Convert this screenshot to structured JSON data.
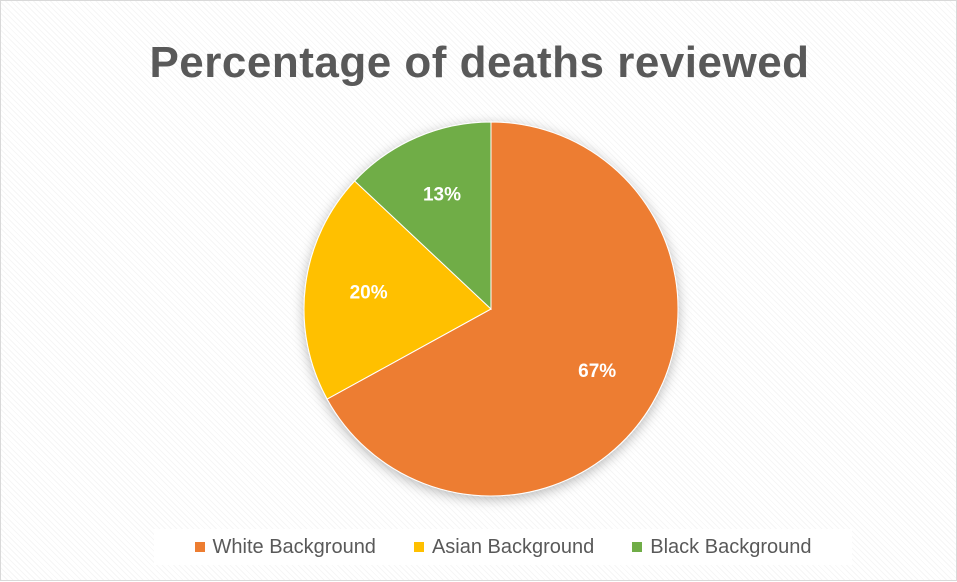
{
  "chart_data": {
    "type": "pie",
    "title": "Percentage of deaths reviewed",
    "categories": [
      "White Background",
      "Asian Background",
      "Black Background"
    ],
    "values": [
      67,
      20,
      13
    ],
    "labels": [
      "67%",
      "20%",
      "13%"
    ],
    "colors": [
      "#ED7D31",
      "#FFC000",
      "#70AD47"
    ],
    "start_angle_deg": 0,
    "direction": "clockwise",
    "legend": "bottom"
  }
}
